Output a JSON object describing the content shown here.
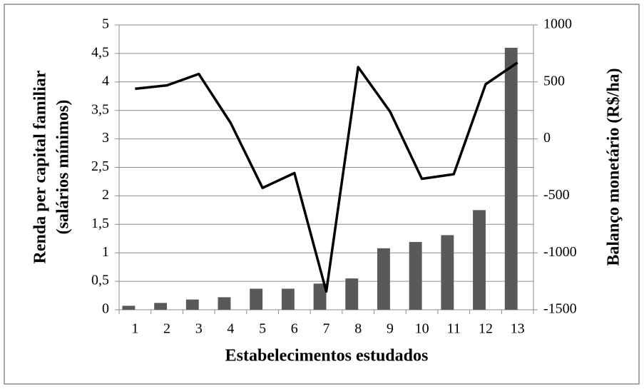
{
  "chart_data": {
    "type": "bar-line",
    "xlabel": "Estabelecimentos estudados",
    "ylabel": [
      "Renda per capital familiar",
      "(salários mínimos)"
    ],
    "y2label": "Balanço monetário (R$/ha)",
    "categories": [
      "1",
      "2",
      "3",
      "4",
      "5",
      "6",
      "7",
      "8",
      "9",
      "10",
      "11",
      "12",
      "13"
    ],
    "series": [
      {
        "type": "bar",
        "color": "#595959",
        "values": [
          0.07,
          0.12,
          0.18,
          0.22,
          0.37,
          0.37,
          0.46,
          0.55,
          1.08,
          1.19,
          1.31,
          1.75,
          4.6
        ]
      },
      {
        "type": "line",
        "axis": "y2",
        "color": "#000000",
        "values": [
          440,
          470,
          570,
          140,
          -430,
          -300,
          -1340,
          630,
          240,
          -350,
          -310,
          480,
          670
        ]
      }
    ],
    "ylim": [
      0,
      5
    ],
    "yticks": [
      0,
      {
        "value": 0.5,
        "label": "0,5"
      },
      1,
      {
        "value": 1.5,
        "label": "1,5"
      },
      2,
      {
        "value": 2.5,
        "label": "2,5"
      },
      3,
      {
        "value": 3.5,
        "label": "3,5"
      },
      4,
      {
        "value": 4.5,
        "label": "4,5"
      },
      5
    ],
    "y2lim": [
      -1500,
      1000
    ],
    "y2ticks": [
      -1500,
      -1000,
      -500,
      0,
      500,
      1000
    ],
    "grid": true
  }
}
